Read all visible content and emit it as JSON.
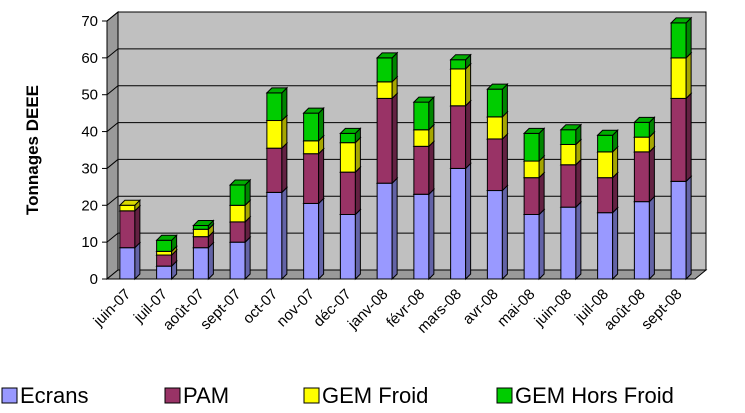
{
  "chart_data": {
    "type": "bar",
    "stacked": true,
    "three_d": true,
    "ylabel": "Tonnages DEEE",
    "xlabel": "",
    "title": "",
    "ylim": [
      0,
      70
    ],
    "yticks": [
      0,
      10,
      20,
      30,
      40,
      50,
      60,
      70
    ],
    "grid": true,
    "legend_position": "bottom",
    "categories": [
      "juin-07",
      "juil-07",
      "août-07",
      "sept-07",
      "oct-07",
      "nov-07",
      "déc-07",
      "janv-08",
      "févr-08",
      "mars-08",
      "avr-08",
      "mai-08",
      "juin-08",
      "juil-08",
      "août-08",
      "sept-08"
    ],
    "series": [
      {
        "name": "Ecrans",
        "color": "#9999ff",
        "values": [
          8.5,
          3.5,
          8.5,
          10,
          23.5,
          20.5,
          17.5,
          26,
          23,
          30,
          24,
          17.5,
          19.5,
          18,
          21,
          26.5
        ]
      },
      {
        "name": "PAM",
        "color": "#993366",
        "values": [
          10,
          3,
          3,
          5.5,
          12,
          13.5,
          11.5,
          23,
          13,
          17,
          14,
          10,
          11.5,
          9.5,
          13.5,
          22.5
        ]
      },
      {
        "name": "GEM Froid",
        "color": "#ffff00",
        "values": [
          1.5,
          1,
          2,
          4.5,
          7.5,
          3.5,
          8,
          4.5,
          4.5,
          10,
          6,
          4.5,
          5.5,
          7,
          4,
          11
        ]
      },
      {
        "name": "GEM Hors Froid",
        "color": "#00cc00",
        "values": [
          0,
          3,
          1,
          5.5,
          7.5,
          7.5,
          2.5,
          6.5,
          7.5,
          2.5,
          7.5,
          7.5,
          4,
          4.5,
          4,
          9.5
        ]
      }
    ]
  }
}
